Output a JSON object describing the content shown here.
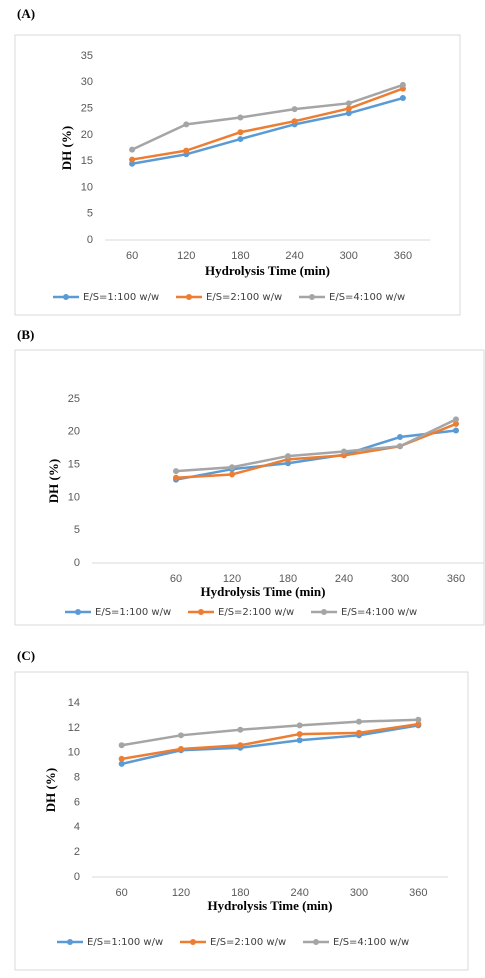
{
  "chart_data": [
    {
      "type": "line",
      "title": "(A)",
      "y_label": "DH (%)",
      "x_label": "Hydrolysis Time (min)",
      "categories": [
        "60",
        "120",
        "180",
        "240",
        "300",
        "360"
      ],
      "ylim": [
        0,
        35
      ],
      "yticks": [
        0,
        5,
        10,
        15,
        20,
        25,
        30,
        35
      ],
      "grid": false,
      "legend": "bottom",
      "series": [
        {
          "name": "E/S=1:100 w/w",
          "color": "#5b9bd5",
          "values": [
            14.5,
            16.3,
            19.2,
            22,
            24.1,
            27
          ]
        },
        {
          "name": "E/S=2:100 w/w",
          "color": "#ed7d31",
          "values": [
            15.3,
            17,
            20.5,
            22.6,
            25,
            28.8
          ]
        },
        {
          "name": "E/S=4:100 w/w",
          "color": "#a5a5a5",
          "values": [
            17.2,
            22,
            23.3,
            24.9,
            26,
            29.5
          ]
        }
      ]
    },
    {
      "type": "line",
      "title": "(B)",
      "y_label": "DH (%)",
      "x_label": "Hydrolysis Time (min)",
      "categories": [
        null,
        "60",
        "120",
        "180",
        "240",
        "300",
        "360"
      ],
      "ylim": [
        0,
        25
      ],
      "yticks": [
        0,
        5,
        10,
        15,
        20,
        25
      ],
      "grid": false,
      "legend": "bottom",
      "series": [
        {
          "name": "E/S=1:100 w/w",
          "color": "#5b9bd5",
          "values": [
            null,
            12.7,
            14.3,
            15.2,
            16.5,
            19.2,
            20.2
          ]
        },
        {
          "name": "E/S=2:100 w/w",
          "color": "#ed7d31",
          "values": [
            null,
            13,
            13.5,
            15.8,
            16.4,
            17.8,
            21.2
          ]
        },
        {
          "name": "E/S=4:100 w/w",
          "color": "#a5a5a5",
          "values": [
            null,
            14,
            14.6,
            16.3,
            17,
            17.8,
            21.9
          ]
        }
      ]
    },
    {
      "type": "line",
      "title": "(C)",
      "y_label": "DH (%)",
      "x_label": "Hydrolysis Time (min)",
      "categories": [
        "60",
        "120",
        "180",
        "240",
        "300",
        "360"
      ],
      "ylim": [
        0,
        14
      ],
      "yticks": [
        0,
        2,
        4,
        6,
        8,
        10,
        12,
        14
      ],
      "grid": false,
      "legend": "bottom",
      "series": [
        {
          "name": "E/S=1:100 w/w",
          "color": "#5b9bd5",
          "values": [
            9.1,
            10.2,
            10.4,
            11,
            11.4,
            12.2
          ]
        },
        {
          "name": "E/S=2:100 w/w",
          "color": "#ed7d31",
          "values": [
            9.5,
            10.3,
            10.6,
            11.5,
            11.6,
            12.3
          ]
        },
        {
          "name": "E/S=4:100 w/w",
          "color": "#a5a5a5",
          "values": [
            10.6,
            11.4,
            11.85,
            12.2,
            12.5,
            12.65
          ]
        }
      ]
    }
  ]
}
